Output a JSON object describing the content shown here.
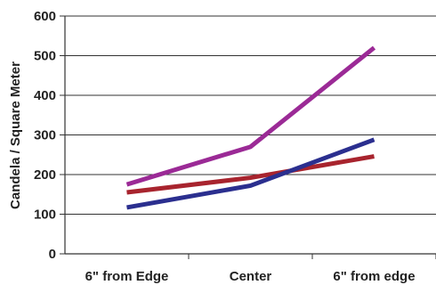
{
  "chart_data": {
    "type": "line",
    "title": "",
    "xlabel": "",
    "ylabel": "Candela / Square Meter",
    "categories": [
      "6\" from Edge",
      "Center",
      "6\" from edge"
    ],
    "ylim": [
      0,
      600
    ],
    "yticks": [
      0,
      100,
      200,
      300,
      400,
      500,
      600
    ],
    "grid": true,
    "series": [
      {
        "color": "#9b2a96",
        "values": [
          175,
          270,
          520
        ]
      },
      {
        "color": "#a8242e",
        "values": [
          155,
          192,
          246
        ]
      },
      {
        "color": "#2b2f8f",
        "values": [
          117,
          172,
          288
        ]
      }
    ]
  }
}
